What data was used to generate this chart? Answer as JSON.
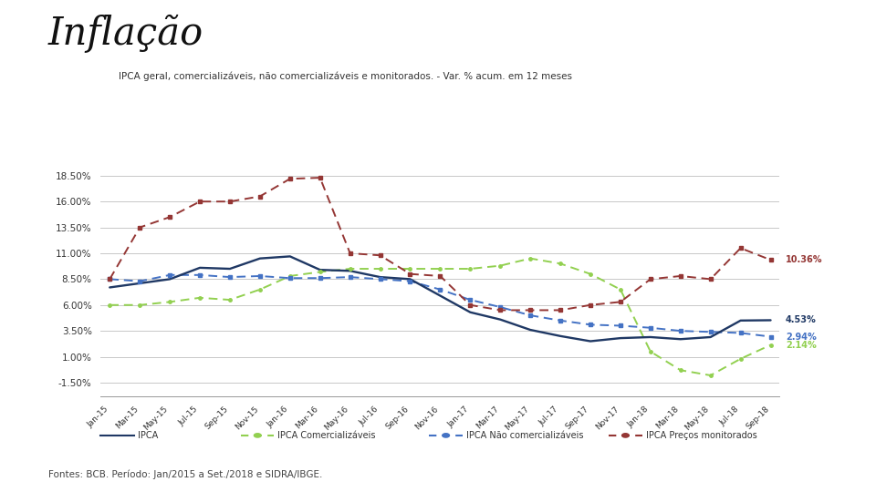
{
  "title": "Inflação",
  "subtitle": "IPCA geral, comercializáveis, não comercializáveis e monitorados. - Var. % acum. em 12 meses",
  "footnote": "Fontes: BCB. Período: Jan/2015 a Set./2018 e SIDRA/IBGE.",
  "yticks": [
    -1.5,
    1.0,
    3.5,
    6.0,
    8.5,
    11.0,
    13.5,
    16.0,
    18.5
  ],
  "ylim": [
    -2.8,
    20.5
  ],
  "background_color": "#ffffff",
  "grid_color": "#c8c8c8",
  "labels": [
    "IPCA",
    "IPCA Comercializáveis",
    "IPCA Não comercializáveis",
    "IPCA Preços monitorados"
  ],
  "colors": [
    "#1f3864",
    "#92d050",
    "#4472c4",
    "#943634"
  ],
  "end_label_colors": [
    "#1f3864",
    "#4472c4",
    "#92d050",
    "#943634"
  ],
  "end_labels": [
    "4.53%",
    "2.94%",
    "2.14%",
    "10.36%"
  ],
  "months": [
    "Jan-15",
    "Mar-15",
    "May-15",
    "Jul-15",
    "Sep-15",
    "Nov-15",
    "Jan-16",
    "Mar-16",
    "May-16",
    "Jul-16",
    "Sep-16",
    "Nov-16",
    "Jan-17",
    "Mar-17",
    "May-17",
    "Jul-17",
    "Sep-17",
    "Nov-17",
    "Jan-18",
    "Mar-18",
    "May-18",
    "Jul-18",
    "Sep-18"
  ],
  "ipca": [
    7.7,
    8.1,
    8.5,
    9.6,
    9.5,
    10.5,
    10.7,
    9.4,
    9.3,
    8.7,
    8.5,
    6.9,
    5.3,
    4.6,
    3.6,
    3.0,
    2.5,
    2.8,
    2.9,
    2.7,
    2.9,
    4.5,
    4.53
  ],
  "comercializaveis": [
    6.0,
    6.0,
    6.3,
    6.7,
    6.5,
    7.5,
    8.8,
    9.2,
    9.5,
    9.5,
    9.5,
    9.5,
    9.5,
    9.8,
    10.5,
    10.0,
    9.0,
    7.5,
    1.5,
    -0.3,
    -0.8,
    0.8,
    2.14
  ],
  "nao_comercializaveis": [
    8.5,
    8.3,
    8.9,
    8.9,
    8.7,
    8.8,
    8.6,
    8.6,
    8.7,
    8.5,
    8.3,
    7.5,
    6.5,
    5.8,
    5.0,
    4.5,
    4.1,
    4.0,
    3.8,
    3.5,
    3.4,
    3.3,
    2.94
  ],
  "monitorados": [
    8.5,
    13.5,
    14.5,
    16.0,
    16.0,
    16.5,
    18.2,
    18.3,
    11.0,
    10.8,
    9.0,
    8.8,
    6.0,
    5.5,
    5.5,
    5.5,
    6.0,
    6.3,
    8.5,
    8.8,
    8.5,
    11.5,
    10.36
  ]
}
